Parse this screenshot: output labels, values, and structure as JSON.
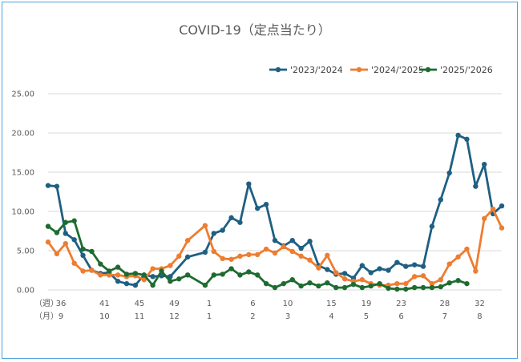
{
  "chart_data": {
    "type": "line",
    "title": "COVID-19（定点当たり）",
    "ylim": [
      0,
      25
    ],
    "yticks": [
      "0.00",
      "5.00",
      "10.00",
      "15.00",
      "20.00",
      "25.00"
    ],
    "grid": true,
    "legend_position": "top-right",
    "x_label_week": "（週）",
    "x_label_month": "（月）",
    "week_ticks": [
      {
        "i": 0,
        "label": "36"
      },
      {
        "i": 5,
        "label": "41"
      },
      {
        "i": 9,
        "label": "45"
      },
      {
        "i": 13,
        "label": "49"
      },
      {
        "i": 17,
        "label": "1"
      },
      {
        "i": 22,
        "label": "6"
      },
      {
        "i": 26,
        "label": "10"
      },
      {
        "i": 31,
        "label": "15"
      },
      {
        "i": 35,
        "label": "19"
      },
      {
        "i": 39,
        "label": "23"
      },
      {
        "i": 44,
        "label": "28"
      },
      {
        "i": 48,
        "label": "32"
      }
    ],
    "month_ticks": [
      {
        "i": 0,
        "label": "9"
      },
      {
        "i": 5,
        "label": "10"
      },
      {
        "i": 9,
        "label": "11"
      },
      {
        "i": 13,
        "label": "12"
      },
      {
        "i": 17,
        "label": "1"
      },
      {
        "i": 22,
        "label": "2"
      },
      {
        "i": 26,
        "label": "3"
      },
      {
        "i": 31,
        "label": "4"
      },
      {
        "i": 35,
        "label": "5"
      },
      {
        "i": 39,
        "label": "6"
      },
      {
        "i": 44,
        "label": "7"
      },
      {
        "i": 48,
        "label": "8"
      }
    ],
    "series": [
      {
        "name": "'2023/'2024",
        "color": "#1f5f82",
        "values": [
          13.3,
          13.2,
          7.2,
          6.4,
          4.4,
          2.5,
          2.1,
          2.2,
          1.1,
          0.8,
          0.6,
          1.9,
          1.7,
          1.8,
          1.7,
          null,
          4.2,
          null,
          4.8,
          7.2,
          7.6,
          9.2,
          8.6,
          13.5,
          10.4,
          10.9,
          6.3,
          5.6,
          6.3,
          5.3,
          6.2,
          3.1,
          2.6,
          2.0,
          2.1,
          1.5,
          3.1,
          2.2,
          2.7,
          2.5,
          3.5,
          3.0,
          3.2,
          3.0,
          8.1,
          11.5,
          14.9,
          19.7,
          19.2,
          13.2,
          16.0,
          9.7,
          10.7
        ]
      },
      {
        "name": "'2024/'2025",
        "color": "#ed7d31",
        "values": [
          6.1,
          4.6,
          5.9,
          3.4,
          2.4,
          2.5,
          1.9,
          1.9,
          1.9,
          1.7,
          1.8,
          1.3,
          2.7,
          2.7,
          3.1,
          4.3,
          6.3,
          null,
          8.2,
          4.9,
          4.0,
          3.9,
          4.3,
          4.5,
          4.5,
          5.2,
          4.7,
          5.5,
          4.9,
          4.3,
          3.8,
          2.8,
          4.4,
          2.2,
          1.4,
          1.1,
          1.3,
          0.8,
          0.6,
          0.6,
          0.8,
          0.8,
          1.7,
          1.8,
          0.8,
          1.3,
          3.3,
          4.2,
          5.2,
          2.4,
          9.1,
          10.3,
          7.9
        ]
      },
      {
        "name": "'2025/'2026",
        "color": "#1e6b30",
        "values": [
          8.1,
          7.3,
          8.6,
          8.8,
          5.2,
          4.9,
          3.3,
          2.4,
          2.9,
          2.0,
          2.1,
          1.9,
          0.6,
          2.4,
          1.1,
          1.4,
          1.9,
          null,
          0.6,
          1.9,
          2.0,
          2.7,
          1.9,
          2.3,
          1.9,
          0.8,
          0.3,
          0.8,
          1.3,
          0.5,
          0.9,
          0.5,
          0.9,
          0.3,
          0.3,
          0.7,
          0.3,
          0.5,
          0.8,
          0.2,
          0.1,
          0.1,
          0.3,
          0.3,
          0.3,
          0.4,
          0.9,
          1.2,
          0.8
        ]
      }
    ]
  }
}
